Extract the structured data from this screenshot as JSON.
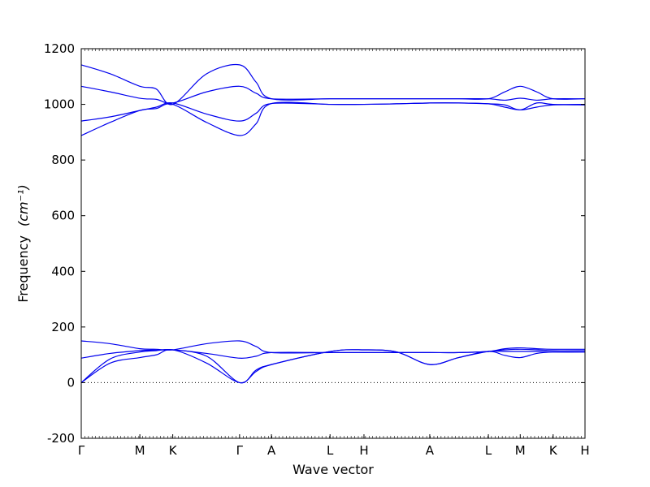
{
  "chart_data": {
    "type": "line",
    "xlabel": "Wave vector",
    "ylabel": "Frequency",
    "ylabel_unit": "(cm⁻¹)",
    "ylim": [
      -200,
      1200
    ],
    "yticks": [
      -200,
      0,
      200,
      400,
      600,
      800,
      1000,
      1200
    ],
    "xlim": [
      0,
      4.9
    ],
    "k_points": [
      {
        "label": "Γ",
        "x": 0.0
      },
      {
        "label": "M",
        "x": 0.57
      },
      {
        "label": "K",
        "x": 0.89
      },
      {
        "label": "Γ",
        "x": 1.54
      },
      {
        "label": "A",
        "x": 1.85
      },
      {
        "label": "L",
        "x": 2.42
      },
      {
        "label": "H",
        "x": 2.75
      },
      {
        "label": "A",
        "x": 3.39
      },
      {
        "label": "L",
        "x": 3.96
      },
      {
        "label": "M",
        "x": 4.27
      },
      {
        "label": "K",
        "x": 4.59
      },
      {
        "label": "H",
        "x": 4.9
      }
    ],
    "zero_line": true,
    "series": [
      {
        "x": [
          0,
          0.28,
          0.57,
          0.73,
          0.89,
          1.22,
          1.54,
          1.7,
          1.85,
          2.42,
          2.75,
          3.07,
          3.39,
          3.67,
          3.96,
          4.12,
          4.27,
          4.43,
          4.59,
          4.9
        ],
        "values": [
          0,
          85,
          110,
          115,
          118,
          95,
          0,
          45,
          65,
          112,
          118,
          110,
          65,
          90,
          112,
          112,
          112,
          112,
          110,
          110
        ]
      },
      {
        "x": [
          0,
          0.28,
          0.57,
          0.73,
          0.89,
          1.22,
          1.54,
          1.7,
          1.85,
          2.42,
          2.75,
          3.07,
          3.39,
          3.67,
          3.96,
          4.12,
          4.27,
          4.43,
          4.59,
          4.9
        ],
        "values": [
          0,
          70,
          90,
          100,
          118,
          70,
          0,
          40,
          65,
          112,
          118,
          110,
          65,
          90,
          112,
          98,
          90,
          105,
          110,
          110
        ]
      },
      {
        "x": [
          0,
          0.28,
          0.57,
          0.73,
          0.89,
          1.22,
          1.54,
          1.7,
          1.85,
          2.42,
          2.75,
          3.07,
          3.39,
          3.67,
          3.96,
          4.12,
          4.27,
          4.43,
          4.59,
          4.9
        ],
        "values": [
          88,
          105,
          115,
          117,
          118,
          105,
          88,
          95,
          108,
          108,
          108,
          108,
          108,
          108,
          112,
          118,
          120,
          118,
          115,
          115
        ]
      },
      {
        "x": [
          0,
          0.28,
          0.57,
          0.73,
          0.89,
          1.22,
          1.54,
          1.7,
          1.85,
          2.42,
          2.75,
          3.07,
          3.39,
          3.67,
          3.96,
          4.12,
          4.27,
          4.43,
          4.59,
          4.9
        ],
        "values": [
          150,
          140,
          122,
          120,
          118,
          140,
          150,
          130,
          108,
          108,
          108,
          108,
          108,
          108,
          112,
          122,
          125,
          122,
          120,
          120
        ]
      },
      {
        "x": [
          0,
          0.28,
          0.57,
          0.73,
          0.89,
          1.22,
          1.54,
          1.7,
          1.85,
          2.42,
          2.75,
          3.07,
          3.39,
          3.67,
          3.96,
          4.12,
          4.27,
          4.43,
          4.59,
          4.9
        ],
        "values": [
          888,
          935,
          978,
          985,
          1000,
          935,
          888,
          930,
          1003,
          1000,
          1000,
          1002,
          1005,
          1005,
          1002,
          990,
          980,
          990,
          998,
          998
        ]
      },
      {
        "x": [
          0,
          0.28,
          0.57,
          0.73,
          0.89,
          1.22,
          1.54,
          1.7,
          1.85,
          2.42,
          2.75,
          3.07,
          3.39,
          3.67,
          3.96,
          4.12,
          4.27,
          4.43,
          4.59,
          4.9
        ],
        "values": [
          940,
          955,
          978,
          990,
          1005,
          965,
          940,
          968,
          1003,
          1000,
          1000,
          1002,
          1005,
          1005,
          1002,
          998,
          980,
          1005,
          1000,
          1000
        ]
      },
      {
        "x": [
          0,
          0.28,
          0.57,
          0.73,
          0.89,
          1.22,
          1.54,
          1.7,
          1.85,
          2.42,
          2.75,
          3.07,
          3.39,
          3.67,
          3.96,
          4.12,
          4.27,
          4.43,
          4.59,
          4.9
        ],
        "values": [
          1065,
          1045,
          1022,
          1018,
          1005,
          1045,
          1065,
          1040,
          1020,
          1020,
          1020,
          1020,
          1020,
          1020,
          1020,
          1015,
          1022,
          1015,
          1020,
          1020
        ]
      },
      {
        "x": [
          0,
          0.28,
          0.57,
          0.73,
          0.89,
          1.22,
          1.54,
          1.7,
          1.85,
          2.42,
          2.75,
          3.07,
          3.39,
          3.67,
          3.96,
          4.12,
          4.27,
          4.43,
          4.59,
          4.9
        ],
        "values": [
          1142,
          1110,
          1065,
          1055,
          1000,
          1110,
          1142,
          1080,
          1020,
          1020,
          1020,
          1020,
          1020,
          1020,
          1020,
          1045,
          1065,
          1045,
          1020,
          1020
        ]
      }
    ]
  }
}
